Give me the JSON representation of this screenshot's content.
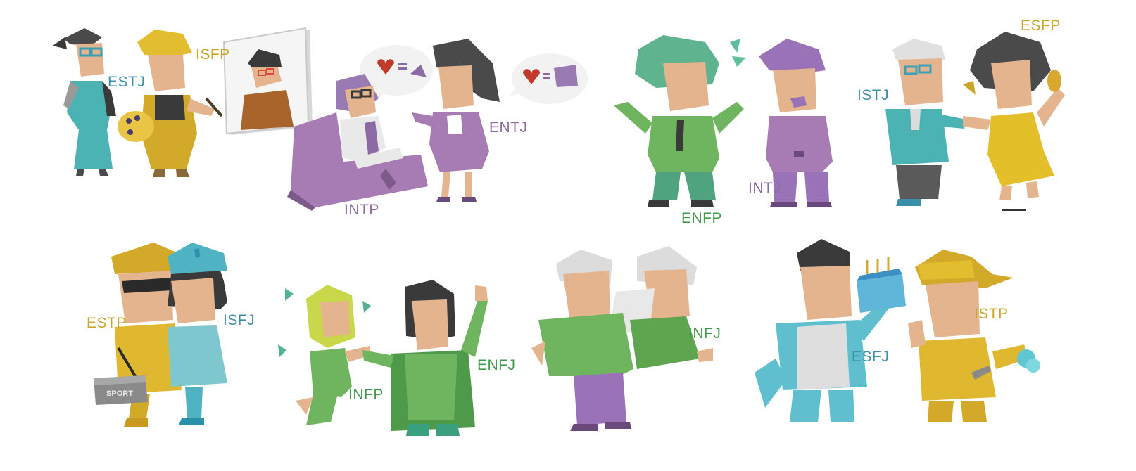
{
  "colors": {
    "blue": "#3f8fa8",
    "gold": "#c9a52a",
    "purple": "#8c6aa3",
    "green": "#3f9a4a"
  },
  "labels": {
    "estj": "ESTJ",
    "isfp": "ISFP",
    "intp": "INTP",
    "entj": "ENTJ",
    "enfp": "ENFP",
    "intj": "INTJ",
    "istj": "ISTJ",
    "esfp": "ESFP",
    "estp": "ESTP",
    "isfj": "ISFJ",
    "infp": "INFP",
    "enfj": "ENFJ",
    "infj": "INFJ",
    "esfj": "ESFJ",
    "istp": "ISTP"
  },
  "decor": {
    "sport_bag_text": "SPORT"
  }
}
